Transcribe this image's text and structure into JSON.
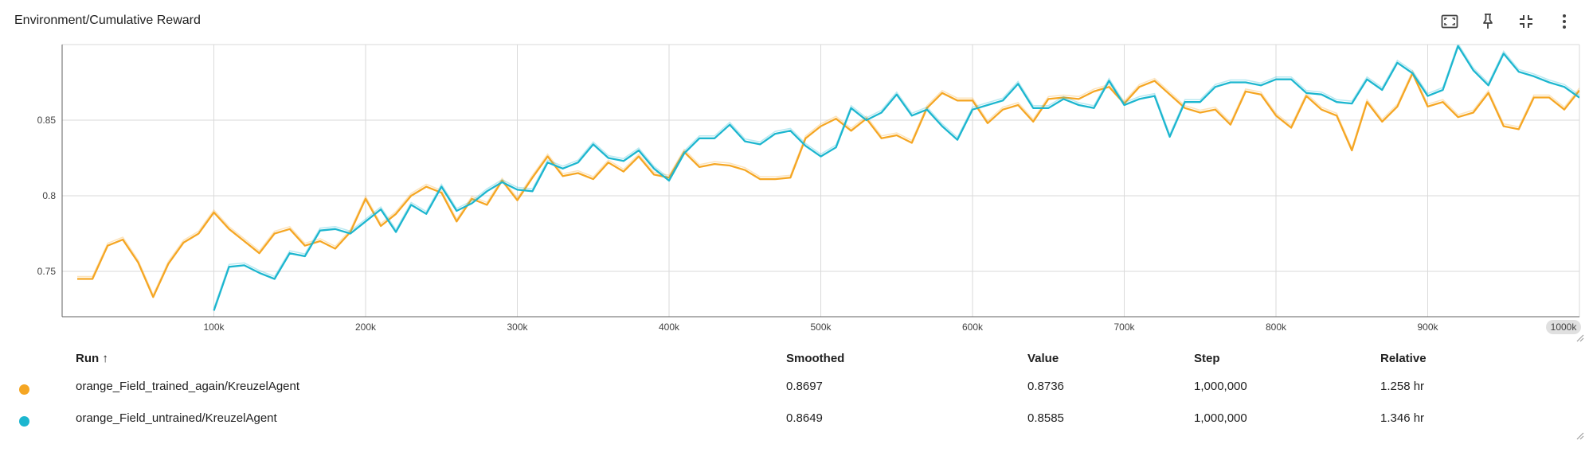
{
  "card": {
    "title": "Environment/Cumulative Reward"
  },
  "toolbar": {
    "buttons": [
      {
        "name": "fullscreen-icon"
      },
      {
        "name": "pin-icon"
      },
      {
        "name": "collapse-icon"
      },
      {
        "name": "more-vert-icon"
      }
    ]
  },
  "chart_data": {
    "type": "line",
    "title": "Environment/Cumulative Reward",
    "xlabel": "",
    "ylabel": "",
    "xlim": [
      0,
      1000000
    ],
    "ylim": [
      0.72,
      0.9
    ],
    "x_ticks": [
      100000,
      200000,
      300000,
      400000,
      500000,
      600000,
      700000,
      800000,
      900000,
      1000000
    ],
    "x_tick_labels": [
      "100k",
      "200k",
      "300k",
      "400k",
      "500k",
      "600k",
      "700k",
      "800k",
      "900k",
      "1000k"
    ],
    "y_ticks": [
      0.75,
      0.8,
      0.85
    ],
    "y_tick_labels": [
      "0.75",
      "0.8",
      "0.85"
    ],
    "grid": true,
    "series": [
      {
        "name": "orange_Field_trained_again/KreuzelAgent",
        "color": "#f5a623",
        "x": [
          10000,
          20000,
          30000,
          40000,
          50000,
          60000,
          70000,
          80000,
          90000,
          100000,
          110000,
          120000,
          130000,
          140000,
          150000,
          160000,
          170000,
          180000,
          190000,
          200000,
          210000,
          220000,
          230000,
          240000,
          250000,
          260000,
          270000,
          280000,
          290000,
          300000,
          310000,
          320000,
          330000,
          340000,
          350000,
          360000,
          370000,
          380000,
          390000,
          400000,
          410000,
          420000,
          430000,
          440000,
          450000,
          460000,
          470000,
          480000,
          490000,
          500000,
          510000,
          520000,
          530000,
          540000,
          550000,
          560000,
          570000,
          580000,
          590000,
          600000,
          610000,
          620000,
          630000,
          640000,
          650000,
          660000,
          670000,
          680000,
          690000,
          700000,
          710000,
          720000,
          730000,
          740000,
          750000,
          760000,
          770000,
          780000,
          790000,
          800000,
          810000,
          820000,
          830000,
          840000,
          850000,
          860000,
          870000,
          880000,
          890000,
          900000,
          910000,
          920000,
          930000,
          940000,
          950000,
          960000,
          970000,
          980000,
          990000,
          1000000
        ],
        "y": [
          0.745,
          0.745,
          0.767,
          0.771,
          0.756,
          0.733,
          0.755,
          0.769,
          0.775,
          0.789,
          0.778,
          0.77,
          0.762,
          0.775,
          0.778,
          0.767,
          0.77,
          0.765,
          0.776,
          0.798,
          0.78,
          0.788,
          0.8,
          0.806,
          0.802,
          0.783,
          0.798,
          0.794,
          0.81,
          0.797,
          0.812,
          0.826,
          0.813,
          0.815,
          0.811,
          0.822,
          0.816,
          0.826,
          0.814,
          0.812,
          0.829,
          0.819,
          0.821,
          0.82,
          0.817,
          0.811,
          0.811,
          0.812,
          0.838,
          0.846,
          0.851,
          0.843,
          0.851,
          0.838,
          0.84,
          0.835,
          0.858,
          0.868,
          0.863,
          0.863,
          0.848,
          0.857,
          0.86,
          0.849,
          0.864,
          0.865,
          0.864,
          0.869,
          0.872,
          0.861,
          0.872,
          0.876,
          0.867,
          0.858,
          0.855,
          0.857,
          0.847,
          0.869,
          0.867,
          0.853,
          0.845,
          0.866,
          0.857,
          0.853,
          0.83,
          0.862,
          0.849,
          0.859,
          0.881,
          0.859,
          0.862,
          0.852,
          0.855,
          0.868,
          0.846,
          0.844,
          0.865,
          0.865,
          0.857,
          0.8697
        ]
      },
      {
        "name": "orange_Field_untrained/KreuzelAgent",
        "color": "#1cb6cf",
        "x": [
          100000,
          110000,
          120000,
          130000,
          140000,
          150000,
          160000,
          170000,
          180000,
          190000,
          200000,
          210000,
          220000,
          230000,
          240000,
          250000,
          260000,
          270000,
          280000,
          290000,
          300000,
          310000,
          320000,
          330000,
          340000,
          350000,
          360000,
          370000,
          380000,
          390000,
          400000,
          410000,
          420000,
          430000,
          440000,
          450000,
          460000,
          470000,
          480000,
          490000,
          500000,
          510000,
          520000,
          530000,
          540000,
          550000,
          560000,
          570000,
          580000,
          590000,
          600000,
          610000,
          620000,
          630000,
          640000,
          650000,
          660000,
          670000,
          680000,
          690000,
          700000,
          710000,
          720000,
          730000,
          740000,
          750000,
          760000,
          770000,
          780000,
          790000,
          800000,
          810000,
          820000,
          830000,
          840000,
          850000,
          860000,
          870000,
          880000,
          890000,
          900000,
          910000,
          920000,
          930000,
          940000,
          950000,
          960000,
          970000,
          980000,
          990000,
          1000000
        ],
        "y": [
          0.724,
          0.753,
          0.754,
          0.749,
          0.745,
          0.762,
          0.76,
          0.777,
          0.778,
          0.775,
          0.783,
          0.791,
          0.776,
          0.794,
          0.788,
          0.806,
          0.79,
          0.795,
          0.803,
          0.809,
          0.804,
          0.803,
          0.822,
          0.818,
          0.822,
          0.834,
          0.825,
          0.823,
          0.83,
          0.818,
          0.81,
          0.828,
          0.838,
          0.838,
          0.847,
          0.836,
          0.834,
          0.841,
          0.843,
          0.833,
          0.826,
          0.832,
          0.858,
          0.85,
          0.855,
          0.867,
          0.853,
          0.857,
          0.846,
          0.837,
          0.857,
          0.86,
          0.863,
          0.874,
          0.858,
          0.858,
          0.864,
          0.86,
          0.858,
          0.876,
          0.86,
          0.864,
          0.866,
          0.839,
          0.862,
          0.862,
          0.872,
          0.875,
          0.875,
          0.873,
          0.877,
          0.877,
          0.868,
          0.867,
          0.862,
          0.861,
          0.877,
          0.87,
          0.888,
          0.881,
          0.866,
          0.87,
          0.899,
          0.883,
          0.873,
          0.894,
          0.882,
          0.879,
          0.875,
          0.872,
          0.8649
        ]
      }
    ]
  },
  "table": {
    "headers": {
      "run": "Run ↑",
      "smoothed": "Smoothed",
      "value": "Value",
      "step": "Step",
      "relative": "Relative"
    },
    "rows": [
      {
        "color": "#f5a623",
        "run": "orange_Field_trained_again/KreuzelAgent",
        "smoothed": "0.8697",
        "value": "0.8736",
        "step": "1,000,000",
        "relative": "1.258 hr"
      },
      {
        "color": "#1cb6cf",
        "run": "orange_Field_untrained/KreuzelAgent",
        "smoothed": "0.8649",
        "value": "0.8585",
        "step": "1,000,000",
        "relative": "1.346 hr"
      }
    ]
  }
}
